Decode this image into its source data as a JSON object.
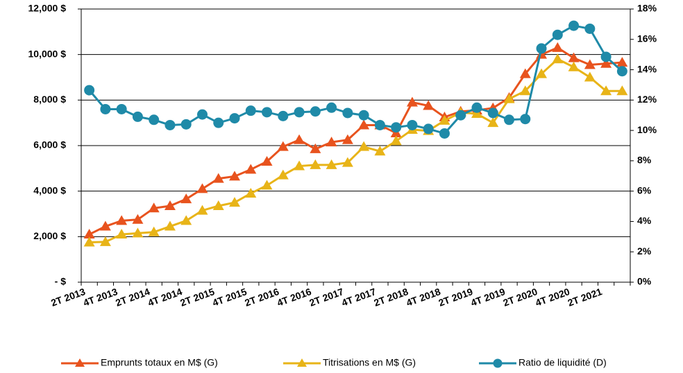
{
  "chart_data": {
    "type": "line",
    "categories": [
      "2T 2013",
      null,
      "4T 2013",
      null,
      "2T 2014",
      null,
      "4T 2014",
      null,
      "2T 2015",
      null,
      "4T 2015",
      null,
      "2T 2016",
      null,
      "4T 2016",
      null,
      "2T 2017",
      null,
      "4T 2017",
      null,
      "2T 2018",
      null,
      "4T 2018",
      null,
      "2T 2019",
      null,
      "4T 2019",
      null,
      "2T 2020",
      null,
      "4T 2020",
      null,
      "2T 2021",
      null
    ],
    "series": [
      {
        "name": "Emprunts totaux en M$ (G)",
        "color": "#e8531e",
        "marker": "triangle",
        "axis": "y",
        "values": [
          2100,
          2450,
          2700,
          2750,
          3250,
          3350,
          3650,
          4100,
          4550,
          4650,
          4950,
          5300,
          5950,
          6250,
          5850,
          6150,
          6250,
          6900,
          6900,
          6550,
          7900,
          7750,
          7250,
          7500,
          7550,
          7650,
          8100,
          9150,
          10000,
          10300,
          9850,
          9550,
          9600,
          9650
        ]
      },
      {
        "name": "Titrisations en M$ (G)",
        "color": "#e8b418",
        "marker": "triangle",
        "axis": "y",
        "values": [
          1750,
          1770,
          2100,
          2150,
          2200,
          2450,
          2700,
          3150,
          3350,
          3500,
          3900,
          4250,
          4700,
          5100,
          5150,
          5150,
          5250,
          5950,
          5750,
          6200,
          6700,
          6650,
          7100,
          7450,
          7400,
          7000,
          8050,
          8400,
          9150,
          9800,
          9450,
          9000,
          8400,
          8400
        ]
      },
      {
        "name": "Ratio de liquidité (D)",
        "color": "#1f8aa8",
        "marker": "circle",
        "axis": "y2",
        "values": [
          12.65,
          11.4,
          11.4,
          10.9,
          10.7,
          10.35,
          10.4,
          11.05,
          10.5,
          10.8,
          11.3,
          11.2,
          10.95,
          11.2,
          11.25,
          11.5,
          11.15,
          11.0,
          10.35,
          10.2,
          10.35,
          10.1,
          9.8,
          11.0,
          11.5,
          11.15,
          10.7,
          10.75,
          15.4,
          16.3,
          16.9,
          16.7,
          14.85,
          13.9
        ]
      }
    ],
    "ylim": [
      0,
      12000
    ],
    "yticks": [
      {
        "value": 0,
        "label": "- $"
      },
      {
        "value": 2000,
        "label": "2,000 $"
      },
      {
        "value": 4000,
        "label": "4,000 $"
      },
      {
        "value": 6000,
        "label": "6,000 $"
      },
      {
        "value": 8000,
        "label": "8,000 $"
      },
      {
        "value": 10000,
        "label": "10,000 $"
      },
      {
        "value": 12000,
        "label": "12,000 $"
      }
    ],
    "y2lim": [
      0,
      18
    ],
    "y2ticks": [
      {
        "value": 0,
        "label": "0%"
      },
      {
        "value": 2,
        "label": "2%"
      },
      {
        "value": 4,
        "label": "4%"
      },
      {
        "value": 6,
        "label": "6%"
      },
      {
        "value": 8,
        "label": "8%"
      },
      {
        "value": 10,
        "label": "10%"
      },
      {
        "value": 12,
        "label": "12%"
      },
      {
        "value": 14,
        "label": "14%"
      },
      {
        "value": 16,
        "label": "16%"
      },
      {
        "value": 18,
        "label": "18%"
      }
    ],
    "grid": true,
    "legend": "bottom"
  }
}
